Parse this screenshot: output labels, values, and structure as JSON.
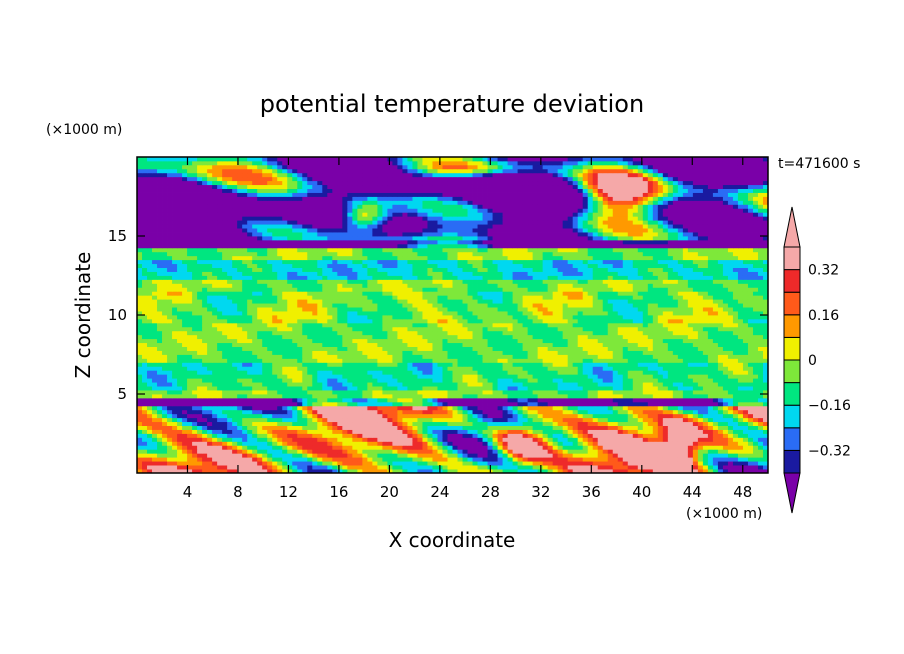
{
  "chart_data": {
    "type": "heatmap",
    "title": "potential temperature deviation",
    "xlabel": "X coordinate",
    "ylabel": "Z coordinate",
    "x_unit": "(×1000 m)",
    "y_unit": "(×1000 m)",
    "time_label": "t=471600 s",
    "xlim": [
      0,
      50
    ],
    "ylim": [
      0,
      20
    ],
    "x_ticks": [
      "4",
      "8",
      "12",
      "16",
      "20",
      "24",
      "28",
      "32",
      "36",
      "40",
      "44",
      "48"
    ],
    "y_ticks": [
      "5",
      "10",
      "15"
    ],
    "x_tick_values": [
      4,
      8,
      12,
      16,
      20,
      24,
      28,
      32,
      36,
      40,
      44,
      48
    ],
    "y_tick_values": [
      5,
      10,
      15
    ],
    "colorbar": {
      "levels": [
        -0.4,
        -0.32,
        -0.24,
        -0.16,
        -0.08,
        0,
        0.08,
        0.16,
        0.24,
        0.32,
        0.4
      ],
      "labels": [
        "0.32",
        "0.16",
        "0",
        "−0.16",
        "−0.32"
      ],
      "label_values": [
        0.32,
        0.16,
        0,
        -0.16,
        -0.32
      ],
      "colors": [
        "#7a00a8",
        "#1a1aa0",
        "#2a6cf5",
        "#00d8f0",
        "#00e680",
        "#7ee83a",
        "#f0f000",
        "#ff9900",
        "#ff5a1a",
        "#ee2a2a",
        "#f5a8a8"
      ]
    },
    "regions": [
      {
        "name": "upper layer",
        "z_range": [
          14.2,
          20
        ],
        "dominant": "-0.40 and below, with patches above 0.40"
      },
      {
        "name": "middle layer",
        "z_range": [
          4.8,
          14.2
        ],
        "dominant": "-0.16 to 0.08"
      },
      {
        "name": "lower layer",
        "z_range": [
          0,
          4.8
        ],
        "dominant": "mixed -0.40 to above 0.40"
      }
    ]
  }
}
